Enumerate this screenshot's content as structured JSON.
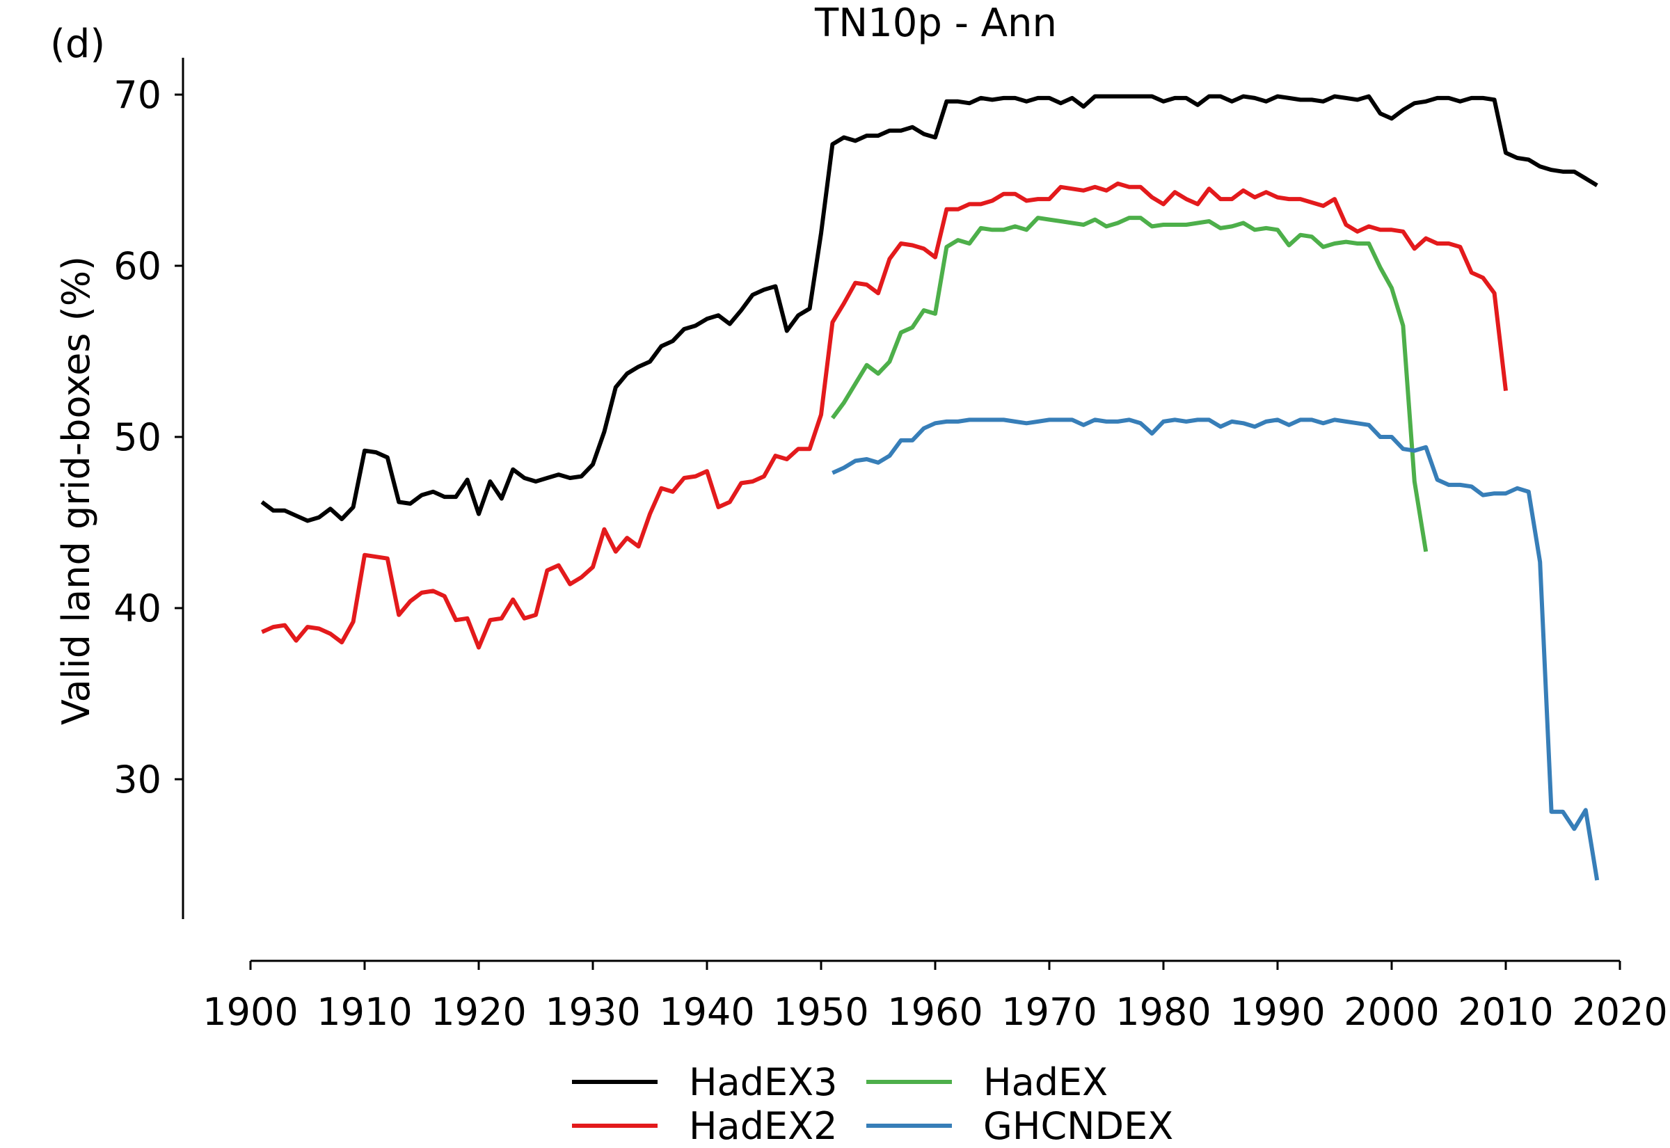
{
  "chart_data": {
    "type": "line",
    "panel_label": "(d)",
    "title": "TN10p - Ann",
    "xlabel": "",
    "ylabel": "Valid land grid-boxes (%)",
    "xlim": [
      1900,
      2020
    ],
    "ylim": [
      23,
      73
    ],
    "x_ticks": [
      1900,
      1910,
      1920,
      1930,
      1940,
      1950,
      1960,
      1970,
      1980,
      1990,
      2000,
      2010,
      2020
    ],
    "y_ticks": [
      30,
      40,
      50,
      60,
      70
    ],
    "grid": false,
    "legend_position": "bottom-center",
    "series": [
      {
        "name": "HadEX3",
        "color": "#000000",
        "x_start": 1901,
        "values": [
          46.2,
          45.7,
          45.7,
          45.4,
          45.1,
          45.3,
          45.8,
          45.2,
          45.9,
          49.2,
          49.1,
          48.8,
          46.2,
          46.1,
          46.6,
          46.8,
          46.5,
          46.5,
          47.5,
          45.5,
          47.4,
          46.4,
          48.1,
          47.6,
          47.4,
          47.6,
          47.8,
          47.6,
          47.7,
          48.4,
          50.3,
          52.9,
          53.7,
          54.1,
          54.4,
          55.3,
          55.6,
          56.3,
          56.5,
          56.9,
          57.1,
          56.6,
          57.4,
          58.3,
          58.6,
          58.8,
          56.2,
          57.1,
          57.5,
          61.9,
          67.1,
          67.5,
          67.3,
          67.6,
          67.6,
          67.9,
          67.9,
          68.1,
          67.7,
          67.5,
          69.6,
          69.6,
          69.5,
          69.8,
          69.7,
          69.8,
          69.8,
          69.6,
          69.8,
          69.8,
          69.5,
          69.8,
          69.3,
          69.9,
          69.9,
          69.9,
          69.9,
          69.9,
          69.9,
          69.6,
          69.8,
          69.8,
          69.4,
          69.9,
          69.9,
          69.6,
          69.9,
          69.8,
          69.6,
          69.9,
          69.8,
          69.7,
          69.7,
          69.6,
          69.9,
          69.8,
          69.7,
          69.9,
          68.9,
          68.6,
          69.1,
          69.5,
          69.6,
          69.8,
          69.8,
          69.6,
          69.8,
          69.8,
          69.7,
          66.6,
          66.3,
          66.2,
          65.8,
          65.6,
          65.5,
          65.5,
          65.1,
          64.7
        ]
      },
      {
        "name": "HadEX2",
        "color": "#e31a1c",
        "x_start": 1901,
        "values": [
          38.6,
          38.9,
          39.0,
          38.1,
          38.9,
          38.8,
          38.5,
          38.0,
          39.2,
          43.1,
          43.0,
          42.9,
          39.6,
          40.4,
          40.9,
          41.0,
          40.7,
          39.3,
          39.4,
          37.7,
          39.3,
          39.4,
          40.5,
          39.4,
          39.6,
          42.2,
          42.5,
          41.4,
          41.8,
          42.4,
          44.6,
          43.3,
          44.1,
          43.6,
          45.5,
          47.0,
          46.8,
          47.6,
          47.7,
          48.0,
          45.9,
          46.2,
          47.3,
          47.4,
          47.7,
          48.9,
          48.7,
          49.3,
          49.3,
          51.3,
          56.7,
          57.8,
          59.0,
          58.9,
          58.4,
          60.4,
          61.3,
          61.2,
          61.0,
          60.5,
          63.3,
          63.3,
          63.6,
          63.6,
          63.8,
          64.2,
          64.2,
          63.8,
          63.9,
          63.9,
          64.6,
          64.5,
          64.4,
          64.6,
          64.4,
          64.8,
          64.6,
          64.6,
          64.0,
          63.6,
          64.3,
          63.9,
          63.6,
          64.5,
          63.9,
          63.9,
          64.4,
          64.0,
          64.3,
          64.0,
          63.9,
          63.9,
          63.7,
          63.5,
          63.9,
          62.4,
          62.0,
          62.3,
          62.1,
          62.1,
          62.0,
          61.0,
          61.6,
          61.3,
          61.3,
          61.1,
          59.6,
          59.3,
          58.4,
          52.7
        ]
      },
      {
        "name": "HadEX",
        "color": "#4daf4a",
        "x_start": 1951,
        "values": [
          51.1,
          52.0,
          53.1,
          54.2,
          53.7,
          54.4,
          56.1,
          56.4,
          57.4,
          57.2,
          61.1,
          61.5,
          61.3,
          62.2,
          62.1,
          62.1,
          62.3,
          62.1,
          62.8,
          62.7,
          62.6,
          62.5,
          62.4,
          62.7,
          62.3,
          62.5,
          62.8,
          62.8,
          62.3,
          62.4,
          62.4,
          62.4,
          62.5,
          62.6,
          62.2,
          62.3,
          62.5,
          62.1,
          62.2,
          62.1,
          61.2,
          61.8,
          61.7,
          61.1,
          61.3,
          61.4,
          61.3,
          61.3,
          59.9,
          58.7,
          56.5,
          47.4,
          43.3
        ]
      },
      {
        "name": "GHCNDEX",
        "color": "#377eb8",
        "x_start": 1951,
        "values": [
          47.9,
          48.2,
          48.6,
          48.7,
          48.5,
          48.9,
          49.8,
          49.8,
          50.5,
          50.8,
          50.9,
          50.9,
          51.0,
          51.0,
          51.0,
          51.0,
          50.9,
          50.8,
          50.9,
          51.0,
          51.0,
          51.0,
          50.7,
          51.0,
          50.9,
          50.9,
          51.0,
          50.8,
          50.2,
          50.9,
          51.0,
          50.9,
          51.0,
          51.0,
          50.6,
          50.9,
          50.8,
          50.6,
          50.9,
          51.0,
          50.7,
          51.0,
          51.0,
          50.8,
          51.0,
          50.9,
          50.8,
          50.7,
          50.0,
          50.0,
          49.3,
          49.2,
          49.4,
          47.5,
          47.2,
          47.2,
          47.1,
          46.6,
          46.7,
          46.7,
          47.0,
          46.8,
          42.7,
          28.1,
          28.1,
          27.1,
          28.2,
          24.1
        ]
      }
    ]
  }
}
